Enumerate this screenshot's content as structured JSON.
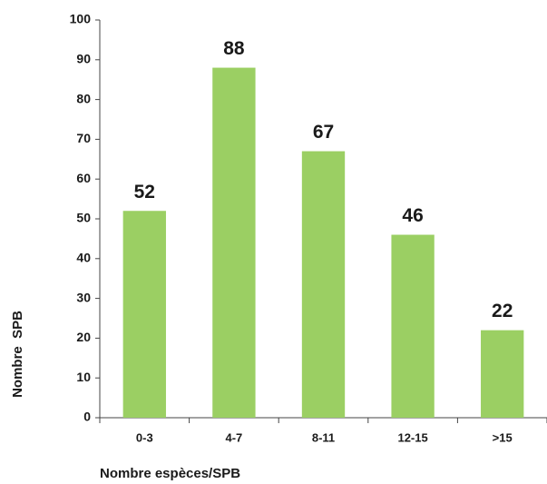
{
  "chart_data": {
    "type": "bar",
    "categories": [
      "0-3",
      "4-7",
      "8-11",
      "12-15",
      ">15"
    ],
    "values": [
      52,
      88,
      67,
      46,
      22
    ],
    "color": "#9bcf63",
    "ylim": [
      0,
      100
    ],
    "yticks": [
      0,
      10,
      20,
      30,
      40,
      50,
      60,
      70,
      80,
      90,
      100
    ],
    "y_label": "Nombre  SPB",
    "x_label": "Nombre espèces/SPB",
    "grid": false
  }
}
